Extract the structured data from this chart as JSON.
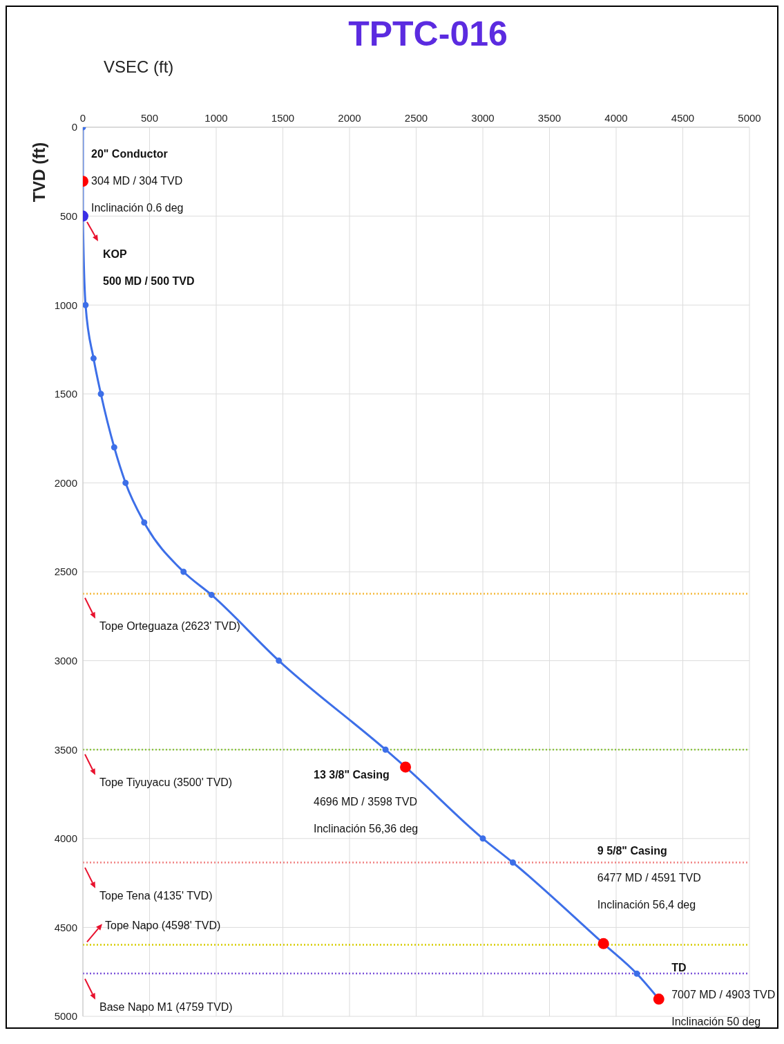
{
  "chart_data": {
    "type": "line",
    "title": "TPTC-016",
    "xlabel": "VSEC (ft)",
    "ylabel": "TVD (ft)",
    "xlim": [
      0,
      5000
    ],
    "xticks": [
      0,
      500,
      1000,
      1500,
      2000,
      2500,
      3000,
      3500,
      4000,
      4500,
      5000
    ],
    "ylim": [
      5000,
      0
    ],
    "yticks": [
      0,
      500,
      1000,
      1500,
      2000,
      2500,
      3000,
      3500,
      4000,
      4500,
      5000
    ],
    "grid": true,
    "marker": "circle",
    "line_style": "solid",
    "series": [
      {
        "color": "#3d6fe8",
        "x": [
          0,
          0,
          20,
          80,
          135,
          235,
          320,
          460,
          755,
          965,
          1470,
          2270,
          2420,
          3000,
          3225,
          3905,
          4155,
          4320
        ],
        "values": [
          0,
          500,
          1000,
          1300,
          1500,
          1800,
          2000,
          2223,
          2500,
          2630,
          3000,
          3500,
          3598,
          4000,
          4135,
          4591,
          4760,
          4903
        ]
      },
      {
        "type": "scatter",
        "color": "#ff0000",
        "x": [
          0,
          2420,
          3905,
          4320
        ],
        "values": [
          304,
          3598,
          4591,
          4903
        ]
      },
      {
        "type": "scatter",
        "color": "#3b2fe6",
        "x": [
          0
        ],
        "values": [
          500
        ]
      }
    ],
    "ref_lines": [
      {
        "axis": "y",
        "value": 2623,
        "label": "Tope Orteguaza (2623' TVD)",
        "color": "#f5b93a",
        "line_style": "dotted"
      },
      {
        "axis": "y",
        "value": 3500,
        "label": "Tope Tiyuyacu (3500' TVD)",
        "color": "#8cc63f",
        "line_style": "dotted"
      },
      {
        "axis": "y",
        "value": 4135,
        "label": "Tope Tena (4135' TVD)",
        "color": "#f08080",
        "line_style": "dotted"
      },
      {
        "axis": "y",
        "value": 4598,
        "label": "Tope Napo (4598' TVD)",
        "color": "#d6cc00",
        "line_style": "dotted"
      },
      {
        "axis": "y",
        "value": 4759,
        "label": "Base Napo M1 (4759 TVD)",
        "color": "#7b52d9",
        "line_style": "dotted"
      }
    ],
    "annotations": [
      "20\" Conductor",
      {
        "text": "304 MD / 304 TVD",
        "x": 0,
        "y": 304
      },
      "Inclinación 0.6 deg",
      "KOP",
      "500 MD / 500 TVD",
      {
        "text": "13 3/8\" Casing",
        "x": 2420,
        "y": 3598
      },
      "4696 MD / 3598 TVD",
      "Inclinación 56,36 deg",
      "9 5/8\" Casing",
      "6477 MD / 4591 TVD",
      "Inclinación 56,4 deg",
      "TD",
      {
        "text": "7007 MD / 4903 TVD",
        "x": 4320,
        "y": 4903
      },
      "Inclinación 50 deg"
    ]
  }
}
